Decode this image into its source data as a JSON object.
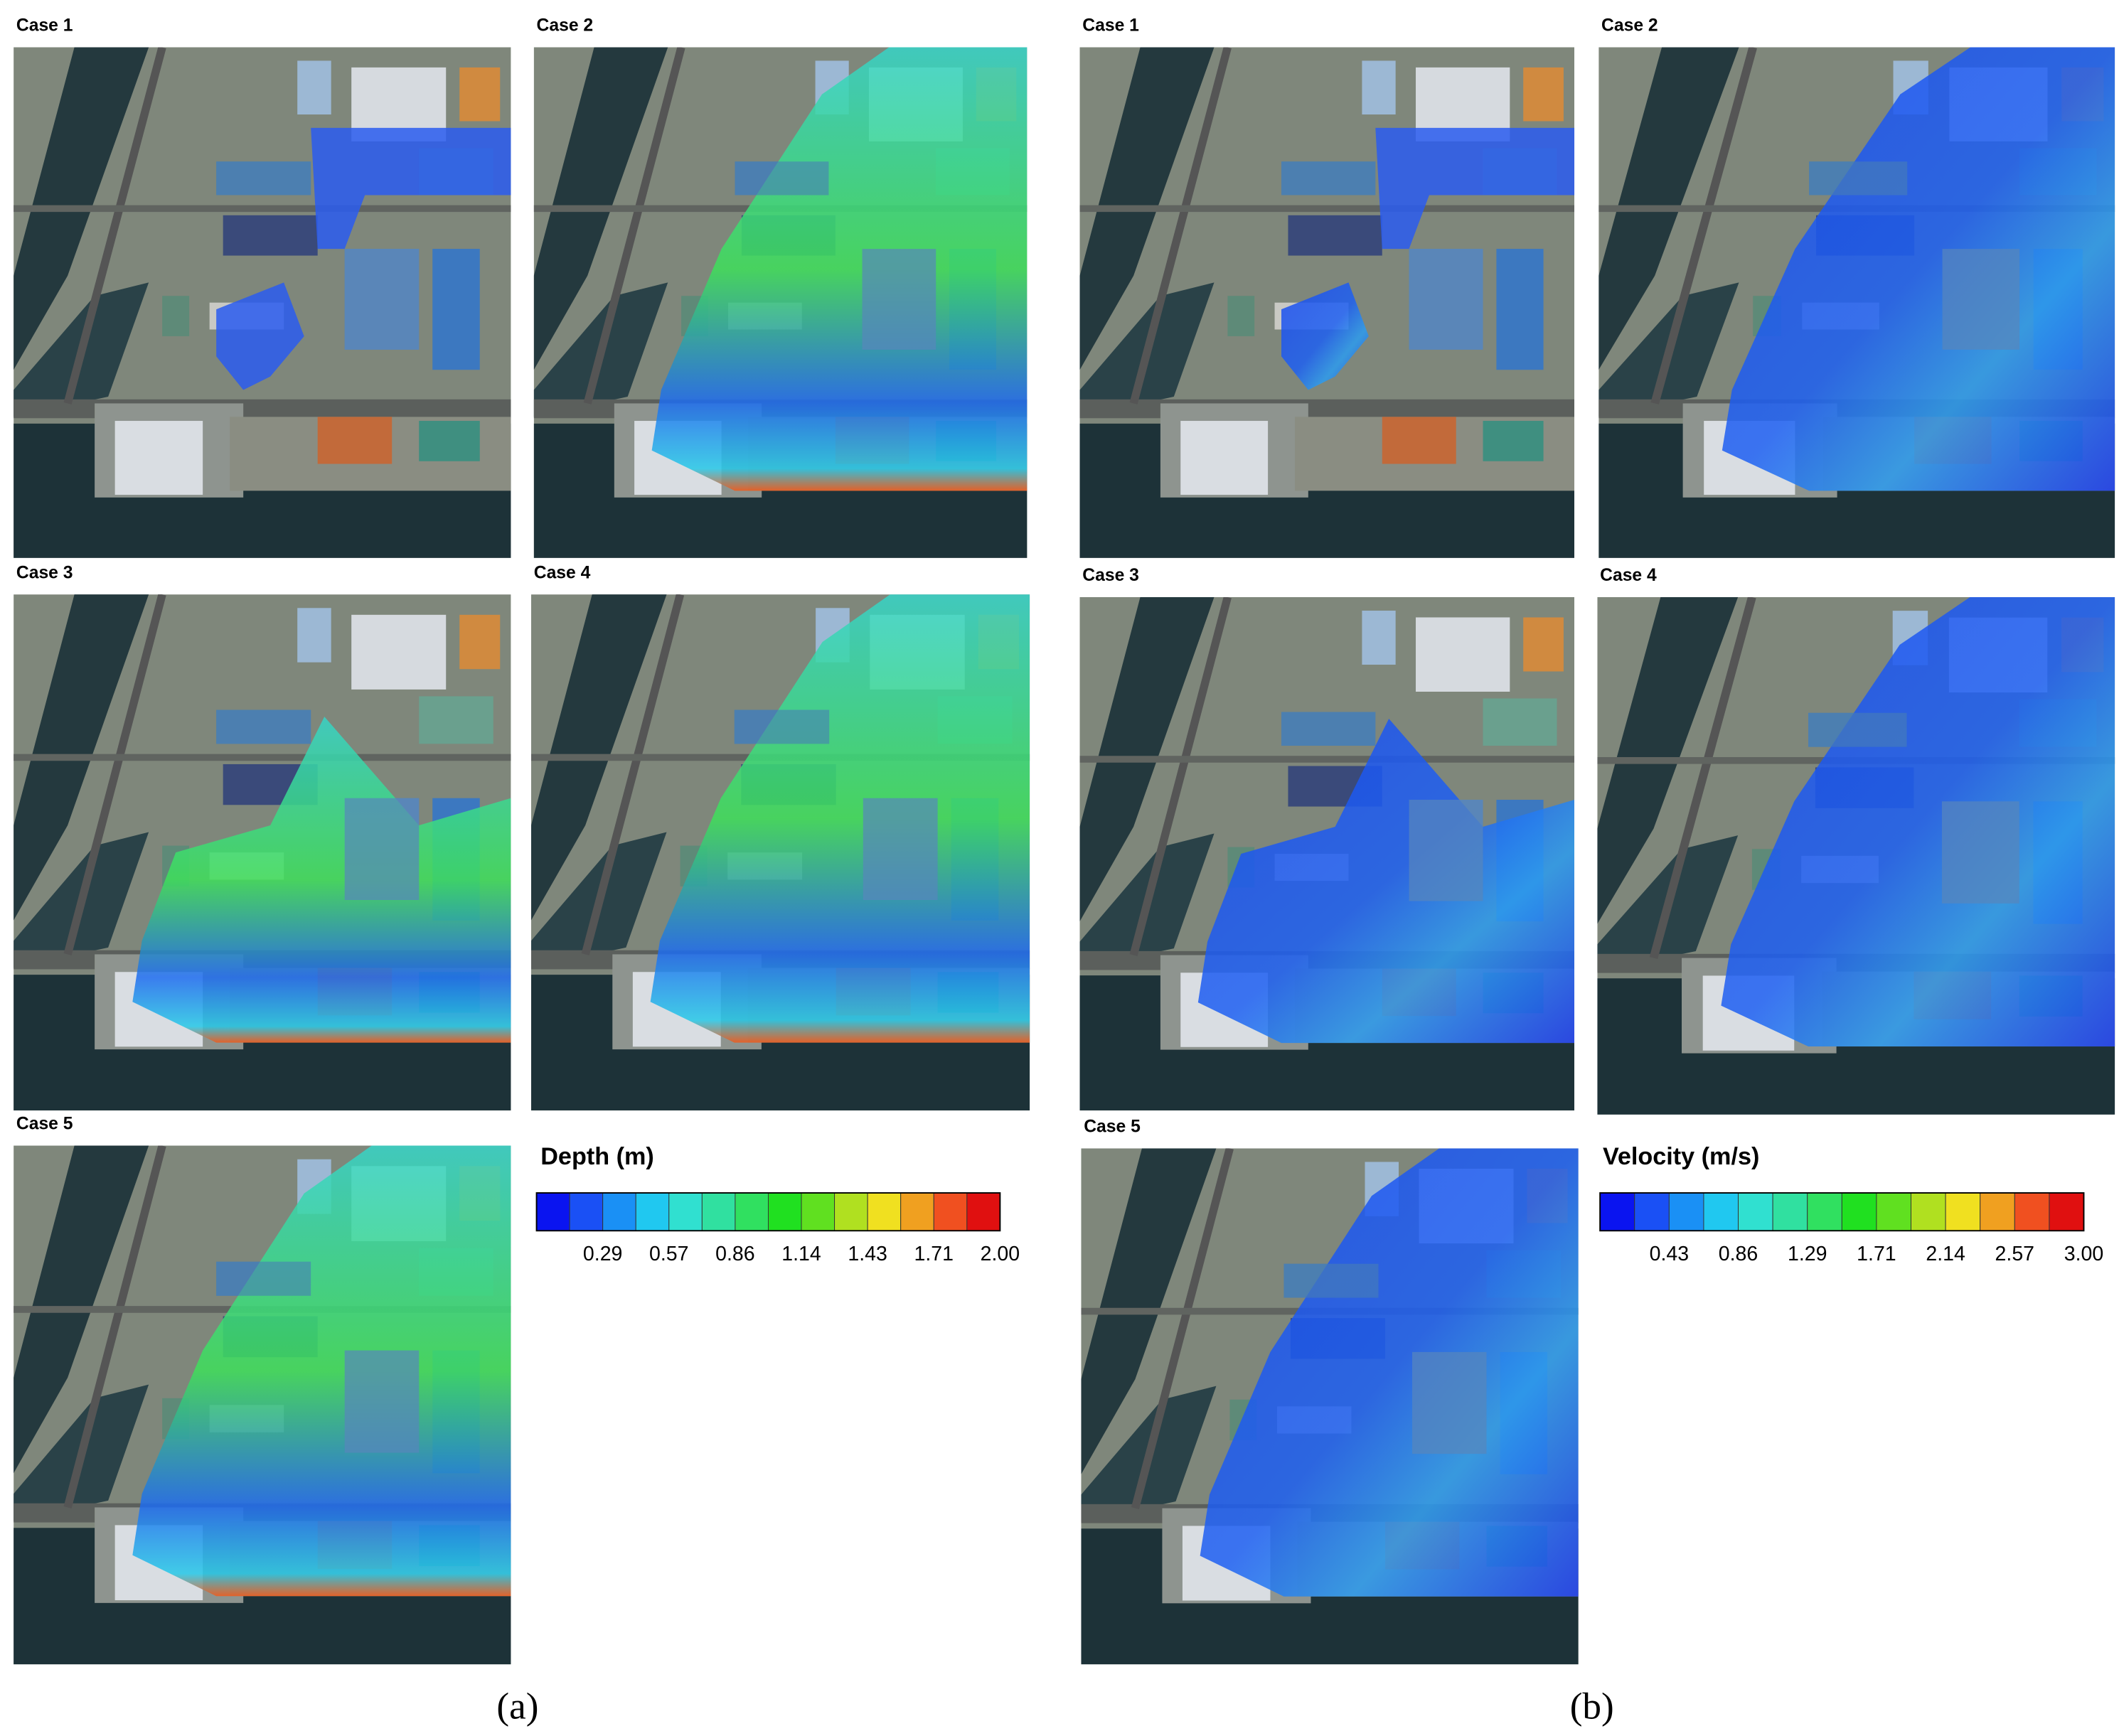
{
  "panels": [
    {
      "label": "(a)",
      "cases": [
        "Case 1",
        "Case 2",
        "Case 3",
        "Case 4",
        "Case 5"
      ],
      "legend": {
        "title": "Depth (m)",
        "ticks": [
          "0.29",
          "0.57",
          "0.86",
          "1.14",
          "1.43",
          "1.71",
          "2.00"
        ]
      }
    },
    {
      "label": "(b)",
      "cases": [
        "Case 1",
        "Case 2",
        "Case 3",
        "Case 4",
        "Case 5"
      ],
      "legend": {
        "title": "Velocity (m/s)",
        "ticks": [
          "0.43",
          "0.86",
          "1.29",
          "1.71",
          "2.14",
          "2.57",
          "3.00"
        ]
      }
    }
  ]
}
